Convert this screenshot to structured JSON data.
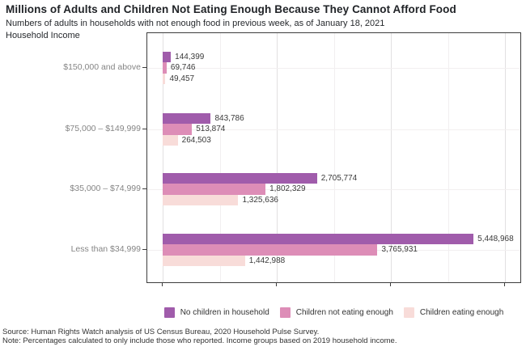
{
  "header": {
    "title": "Millions of Adults and Children Not Eating Enough Because They Cannot Afford Food",
    "subtitle": "Numbers of adults in households with not enough food in previous week, as of January 18, 2021",
    "axis_title": "Household Income"
  },
  "chart_data": {
    "type": "bar",
    "orientation": "horizontal",
    "grouping": "grouped",
    "title": "Millions of Adults and Children Not Eating Enough Because They Cannot Afford Food",
    "subtitle": "Numbers of adults in households with not enough food in previous week, as of January 18, 2021",
    "ylabel": "Household Income",
    "xlabel": "",
    "categories": [
      "$150,000 and above",
      "$75,000 – $149,999",
      "$35,000 – $74,999",
      "Less than $34,999"
    ],
    "series": [
      {
        "name": "No children in household",
        "color": "#a05cab",
        "values": [
          144399,
          843786,
          2705774,
          5448968
        ]
      },
      {
        "name": "Children not eating enough",
        "color": "#dd8db7",
        "values": [
          69746,
          513874,
          1802329,
          3765931
        ]
      },
      {
        "name": "Children eating enough",
        "color": "#f8dcd9",
        "values": [
          49457,
          264503,
          1325636,
          1442988
        ]
      }
    ],
    "xlim": [
      0,
      6000000
    ],
    "grid": "on",
    "gridline_interval_major": 2000000,
    "gridline_interval_minor": 1000000,
    "value_labels": "outside-end",
    "legend_position": "bottom"
  },
  "footer": {
    "source": "Source: Human Rights Watch analysis of US Census Bureau, 2020 Household Pulse Survey.",
    "note": "Note: Percentages calculated to only include those who reported. Income groups based on 2019 household income."
  },
  "colors": {
    "panel_border": "#3d3d3d",
    "grid_major": "#e2e0e1",
    "grid_minor": "#f1eff0",
    "category_label": "#858585",
    "value_label": "#3a3a3a",
    "title_text": "#1f2226"
  }
}
